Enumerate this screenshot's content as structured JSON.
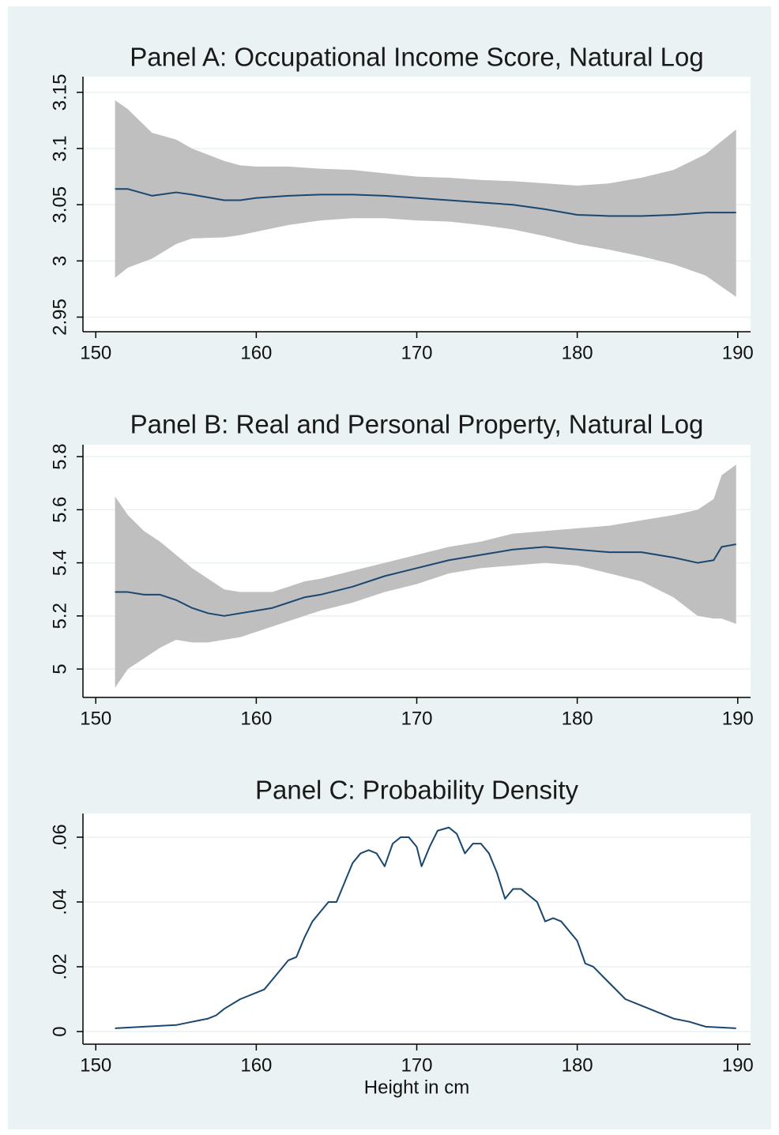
{
  "chart_data": [
    {
      "type": "band-line",
      "title": "Panel A: Occupational Income Score, Natural Log",
      "x": [
        151.2,
        152,
        153.5,
        155,
        156,
        158,
        159,
        160,
        162,
        164,
        166,
        168,
        170,
        172,
        174,
        176,
        178,
        180,
        182,
        184,
        186,
        188,
        189.9
      ],
      "values": [
        3.064,
        3.064,
        3.058,
        3.061,
        3.059,
        3.054,
        3.054,
        3.056,
        3.058,
        3.059,
        3.059,
        3.058,
        3.056,
        3.054,
        3.052,
        3.05,
        3.046,
        3.041,
        3.04,
        3.04,
        3.041,
        3.043,
        3.043
      ],
      "ci_upper": [
        3.143,
        3.135,
        3.114,
        3.108,
        3.1,
        3.089,
        3.085,
        3.084,
        3.084,
        3.082,
        3.081,
        3.078,
        3.075,
        3.074,
        3.072,
        3.071,
        3.069,
        3.067,
        3.069,
        3.074,
        3.081,
        3.095,
        3.117
      ],
      "ci_lower": [
        2.985,
        2.994,
        3.002,
        3.015,
        3.02,
        3.021,
        3.023,
        3.026,
        3.032,
        3.036,
        3.038,
        3.038,
        3.036,
        3.035,
        3.032,
        3.028,
        3.022,
        3.015,
        3.01,
        3.004,
        2.997,
        2.987,
        2.968
      ],
      "color": "#1a476f",
      "band_color": "#bfbfbf",
      "xlim": [
        149.2,
        190.8
      ],
      "xticks": [
        150,
        160,
        170,
        180,
        190
      ],
      "ylim": [
        2.937,
        3.164
      ],
      "yticks": [
        2.95,
        3,
        3.05,
        3.1,
        3.15
      ],
      "grid": true
    },
    {
      "type": "band-line",
      "title": "Panel B: Real and Personal Property, Natural Log",
      "x": [
        151.2,
        152,
        153,
        154,
        155,
        156,
        157,
        158,
        159,
        160,
        161,
        162,
        163,
        164,
        166,
        168,
        170,
        172,
        174,
        176,
        178,
        180,
        182,
        184,
        186,
        187.5,
        188.5,
        189,
        189.9
      ],
      "values": [
        5.29,
        5.29,
        5.28,
        5.28,
        5.26,
        5.23,
        5.21,
        5.2,
        5.21,
        5.22,
        5.23,
        5.25,
        5.27,
        5.28,
        5.31,
        5.35,
        5.38,
        5.41,
        5.43,
        5.45,
        5.46,
        5.45,
        5.44,
        5.44,
        5.42,
        5.4,
        5.41,
        5.46,
        5.47
      ],
      "ci_upper": [
        5.65,
        5.58,
        5.52,
        5.48,
        5.43,
        5.38,
        5.34,
        5.3,
        5.29,
        5.29,
        5.29,
        5.31,
        5.33,
        5.34,
        5.37,
        5.4,
        5.43,
        5.46,
        5.48,
        5.51,
        5.52,
        5.53,
        5.54,
        5.56,
        5.58,
        5.6,
        5.64,
        5.73,
        5.77
      ],
      "ci_lower": [
        4.93,
        5.0,
        5.04,
        5.08,
        5.11,
        5.1,
        5.1,
        5.11,
        5.12,
        5.14,
        5.16,
        5.18,
        5.2,
        5.22,
        5.25,
        5.29,
        5.32,
        5.36,
        5.38,
        5.39,
        5.4,
        5.39,
        5.36,
        5.33,
        5.27,
        5.2,
        5.19,
        5.19,
        5.17
      ],
      "color": "#1a476f",
      "band_color": "#bfbfbf",
      "xlim": [
        149.2,
        190.8
      ],
      "xticks": [
        150,
        160,
        170,
        180,
        190
      ],
      "ylim": [
        4.893,
        5.845
      ],
      "yticks": [
        5,
        5.2,
        5.4,
        5.6,
        5.8
      ],
      "grid": true
    },
    {
      "type": "line",
      "title": "Panel C: Probability Density",
      "x_label": "Height in cm",
      "x": [
        151.2,
        153,
        155,
        156,
        157,
        157.5,
        158,
        159,
        160,
        160.5,
        161,
        161.5,
        162,
        162.5,
        163,
        163.5,
        164,
        164.5,
        165,
        165.5,
        166,
        166.5,
        167,
        167.5,
        168,
        168.5,
        169,
        169.5,
        170,
        170.3,
        170.8,
        171.3,
        172,
        172.5,
        173,
        173.5,
        174,
        174.5,
        175,
        175.5,
        176,
        176.5,
        177,
        177.5,
        178,
        178.5,
        179,
        180,
        180.5,
        181,
        182,
        183,
        184,
        185,
        186,
        187,
        188,
        189.9
      ],
      "values": [
        0.001,
        0.0015,
        0.002,
        0.003,
        0.004,
        0.005,
        0.007,
        0.01,
        0.012,
        0.013,
        0.016,
        0.019,
        0.022,
        0.023,
        0.029,
        0.034,
        0.037,
        0.04,
        0.04,
        0.046,
        0.052,
        0.055,
        0.056,
        0.055,
        0.051,
        0.058,
        0.06,
        0.06,
        0.057,
        0.051,
        0.057,
        0.062,
        0.063,
        0.061,
        0.055,
        0.058,
        0.058,
        0.055,
        0.049,
        0.041,
        0.044,
        0.044,
        0.042,
        0.04,
        0.034,
        0.035,
        0.034,
        0.028,
        0.021,
        0.02,
        0.015,
        0.01,
        0.008,
        0.006,
        0.004,
        0.003,
        0.0015,
        0.001
      ],
      "color": "#1a476f",
      "xlim": [
        149.2,
        190.8
      ],
      "xticks": [
        150,
        160,
        170,
        180,
        190
      ],
      "ylim": [
        -0.0039,
        0.0673
      ],
      "yticks": [
        0,
        {
          "value": 0.02,
          "label": ".02"
        },
        {
          "value": 0.04,
          "label": ".04"
        },
        {
          "value": 0.06,
          "label": ".06"
        }
      ],
      "grid": true
    }
  ]
}
